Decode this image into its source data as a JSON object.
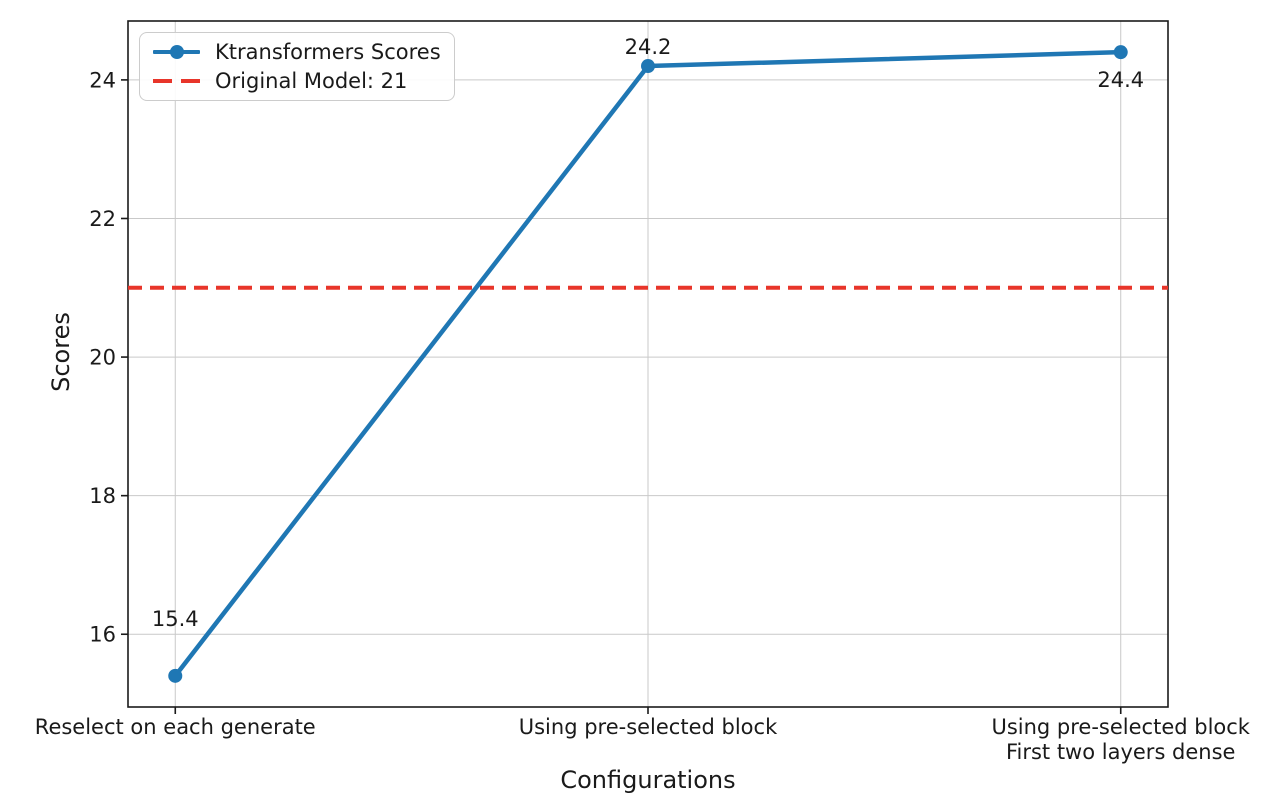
{
  "chart_data": {
    "type": "line",
    "title": "",
    "xlabel": "Configurations",
    "ylabel": "Scores",
    "categories": [
      "Reselect on each generate",
      "Using pre-selected block",
      [
        "Using pre-selected block",
        "First two layers dense"
      ]
    ],
    "series": [
      {
        "name": "Ktransformers Scores",
        "values": [
          15.4,
          24.2,
          24.4
        ],
        "labels": [
          "15.4",
          "24.2",
          "24.4"
        ],
        "color": "#1f77b4",
        "marker": "circle",
        "line_style": "solid"
      }
    ],
    "reference_line": {
      "label": "Original Model: 21",
      "value": 21,
      "color": "#e8352a",
      "line_style": "dashed"
    },
    "yticks": [
      16,
      18,
      20,
      22,
      24
    ],
    "ylim": [
      14.95,
      24.85
    ],
    "grid": true,
    "legend_position": "upper-left"
  }
}
